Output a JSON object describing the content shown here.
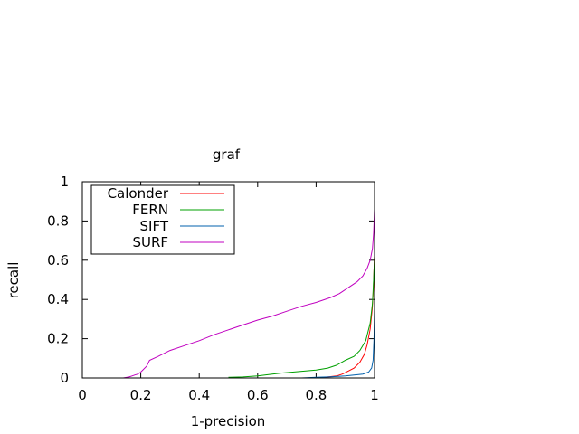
{
  "chart_data": {
    "type": "line",
    "title": "graf",
    "xlabel": "1-precision",
    "ylabel": "recall",
    "xlim": [
      0,
      1
    ],
    "ylim": [
      0,
      1
    ],
    "x_ticks": [
      "0",
      "0.2",
      "0.4",
      "0.6",
      "0.8",
      "1"
    ],
    "y_ticks": [
      "0",
      "0.2",
      "0.4",
      "0.6",
      "0.8",
      "1"
    ],
    "grid": false,
    "legend_position": "top-left",
    "series": [
      {
        "name": "Calonder",
        "color": "#ff0000",
        "x": [
          0.8,
          0.84,
          0.87,
          0.89,
          0.91,
          0.93,
          0.95,
          0.965,
          0.975,
          0.985,
          0.992,
          0.996,
          0.998,
          1.0
        ],
        "y": [
          0.0,
          0.005,
          0.01,
          0.02,
          0.035,
          0.05,
          0.08,
          0.12,
          0.17,
          0.25,
          0.35,
          0.45,
          0.55,
          0.62
        ]
      },
      {
        "name": "FERN",
        "color": "#00a000",
        "x": [
          0.5,
          0.55,
          0.6,
          0.65,
          0.68,
          0.72,
          0.76,
          0.8,
          0.84,
          0.87,
          0.9,
          0.93,
          0.95,
          0.97,
          0.985,
          0.993,
          0.997,
          1.0
        ],
        "y": [
          0.003,
          0.005,
          0.01,
          0.02,
          0.025,
          0.03,
          0.035,
          0.04,
          0.05,
          0.065,
          0.09,
          0.11,
          0.14,
          0.19,
          0.28,
          0.38,
          0.5,
          0.62
        ]
      },
      {
        "name": "SIFT",
        "color": "#0060ad",
        "x": [
          0.75,
          0.8,
          0.85,
          0.9,
          0.93,
          0.96,
          0.98,
          0.99,
          0.995,
          0.998,
          1.0
        ],
        "y": [
          0.0,
          0.003,
          0.006,
          0.01,
          0.015,
          0.02,
          0.03,
          0.05,
          0.09,
          0.2,
          0.35
        ]
      },
      {
        "name": "SURF",
        "color": "#c000c0",
        "x": [
          0.14,
          0.16,
          0.17,
          0.18,
          0.19,
          0.2,
          0.22,
          0.23,
          0.26,
          0.3,
          0.35,
          0.4,
          0.45,
          0.5,
          0.55,
          0.6,
          0.65,
          0.7,
          0.75,
          0.8,
          0.85,
          0.88,
          0.91,
          0.94,
          0.96,
          0.975,
          0.985,
          0.993,
          0.997,
          1.0
        ],
        "y": [
          0.0,
          0.005,
          0.01,
          0.015,
          0.02,
          0.03,
          0.06,
          0.09,
          0.11,
          0.14,
          0.165,
          0.19,
          0.22,
          0.245,
          0.27,
          0.295,
          0.315,
          0.34,
          0.365,
          0.385,
          0.41,
          0.43,
          0.46,
          0.49,
          0.52,
          0.56,
          0.6,
          0.66,
          0.74,
          0.86
        ]
      }
    ]
  }
}
